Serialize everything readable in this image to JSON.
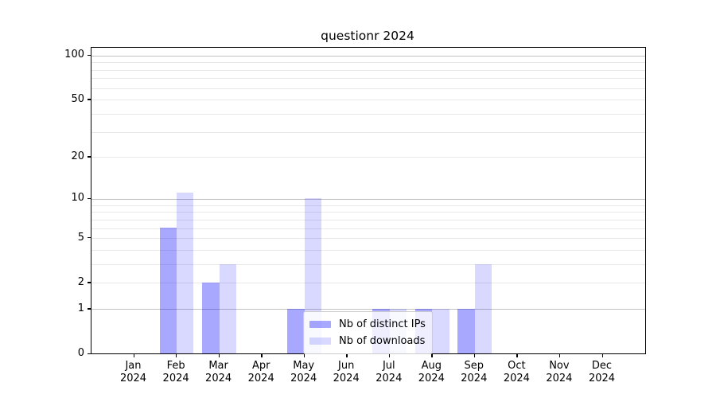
{
  "chart_data": {
    "type": "bar",
    "title": "questionr 2024",
    "categories": [
      "Jan",
      "Feb",
      "Mar",
      "Apr",
      "May",
      "Jun",
      "Jul",
      "Aug",
      "Sep",
      "Oct",
      "Nov",
      "Dec"
    ],
    "category_year": "2024",
    "series": [
      {
        "name": "Nb of distinct IPs",
        "color": "rgba(0,0,255,0.34)",
        "values": [
          0,
          6,
          2,
          0,
          1,
          0,
          1,
          1,
          1,
          0,
          0,
          0
        ]
      },
      {
        "name": "Nb of downloads",
        "color": "rgba(0,0,255,0.15)",
        "values": [
          0,
          11,
          3,
          0,
          10,
          0,
          1,
          1,
          3,
          0,
          0,
          0
        ]
      }
    ],
    "yscale": "log1p",
    "ylim": [
      0,
      113
    ],
    "yticks": [
      0,
      1,
      2,
      5,
      10,
      20,
      50,
      100
    ],
    "major_gridlines": [
      1,
      10,
      100
    ],
    "minor_gridlines": [
      2,
      3,
      4,
      5,
      6,
      7,
      8,
      9,
      20,
      30,
      40,
      50,
      60,
      70,
      80,
      90
    ],
    "grid": "on",
    "legend_position": "lower center",
    "colors": {
      "grid_major": "#c2c2c2",
      "grid_minor": "#e8e8e8",
      "axis": "#000000",
      "background": "#ffffff"
    }
  }
}
